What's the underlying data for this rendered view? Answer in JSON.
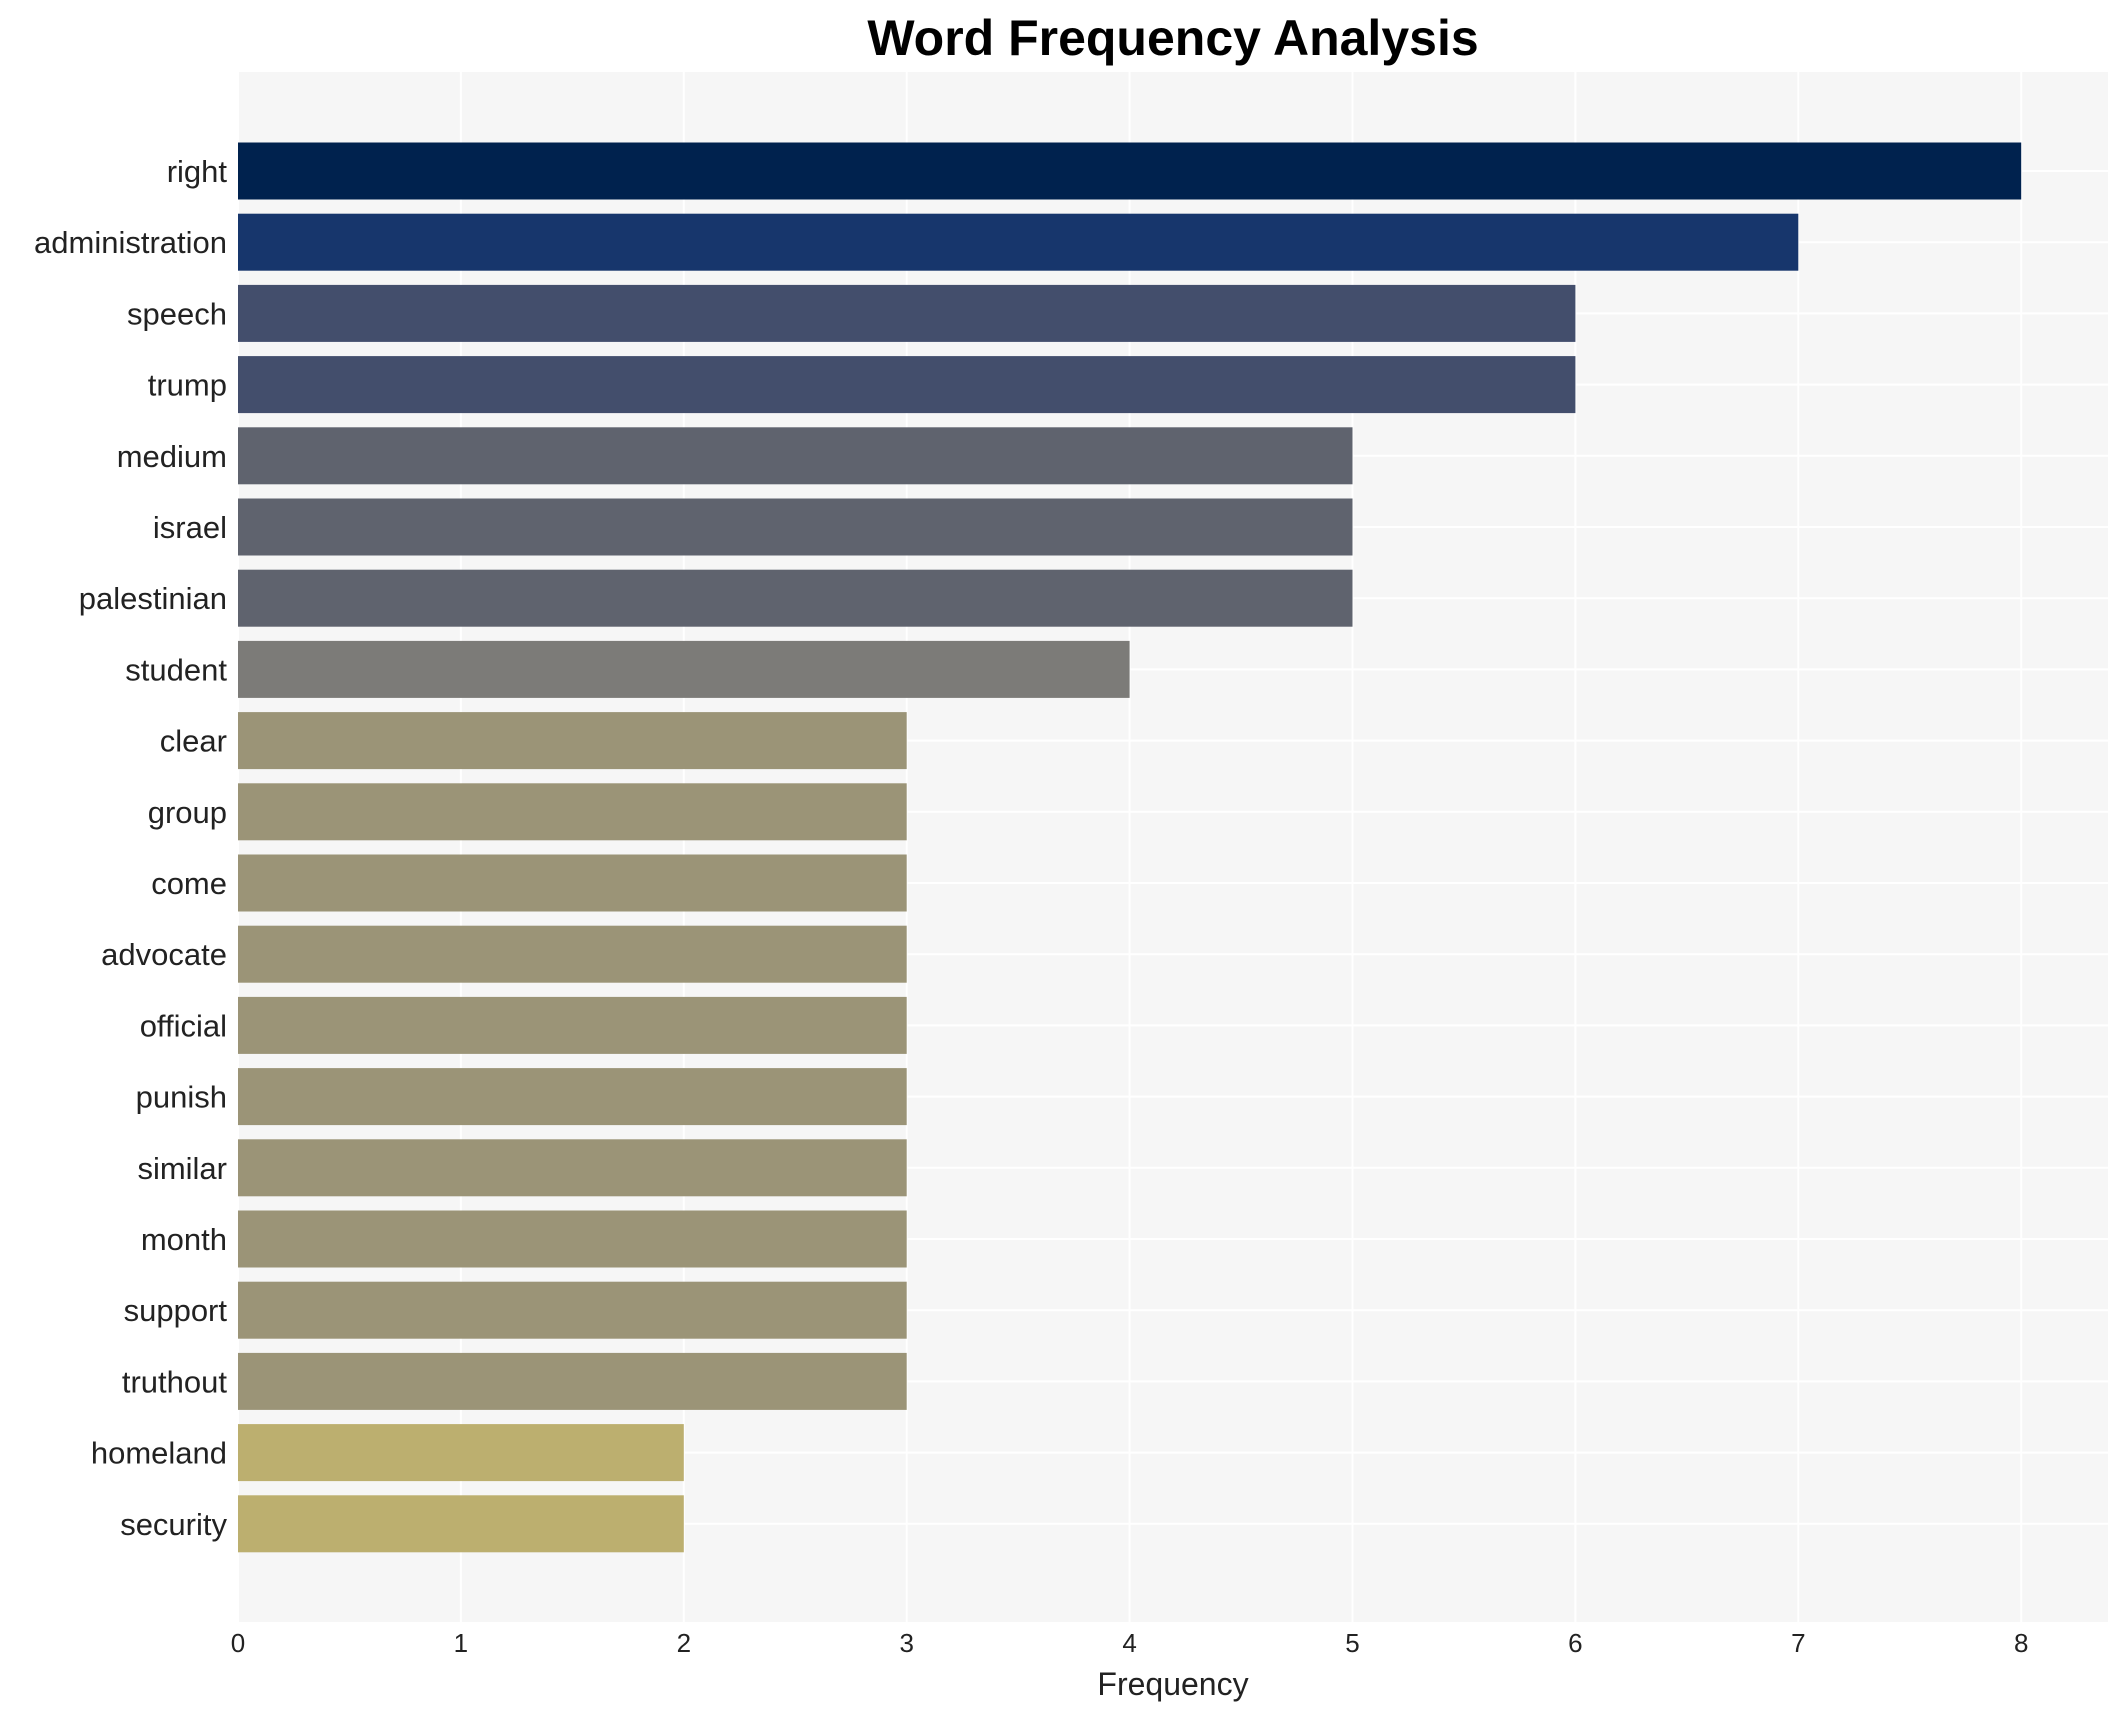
{
  "chart_data": {
    "type": "bar",
    "orientation": "horizontal",
    "title": "Word Frequency Analysis",
    "xlabel": "Frequency",
    "ylabel": "",
    "xlim": [
      0,
      8.4
    ],
    "x_ticks": [
      0,
      1,
      2,
      3,
      4,
      5,
      6,
      7,
      8
    ],
    "grid": true,
    "categories": [
      "right",
      "administration",
      "speech",
      "trump",
      "medium",
      "israel",
      "palestinian",
      "student",
      "clear",
      "group",
      "come",
      "advocate",
      "official",
      "punish",
      "similar",
      "month",
      "support",
      "truthout",
      "homeland",
      "security"
    ],
    "values": [
      8,
      7,
      6,
      6,
      5,
      5,
      5,
      4,
      3,
      3,
      3,
      3,
      3,
      3,
      3,
      3,
      3,
      3,
      2,
      2
    ],
    "colors": {
      "8": "#00224e",
      "7": "#17366c",
      "6": "#434e6c",
      "5": "#5f636e",
      "4": "#7c7b78",
      "3": "#9b9477",
      "2": "#bcaf6f"
    },
    "plot_background": "#f6f6f6",
    "gridline_color": "#ffffff"
  }
}
